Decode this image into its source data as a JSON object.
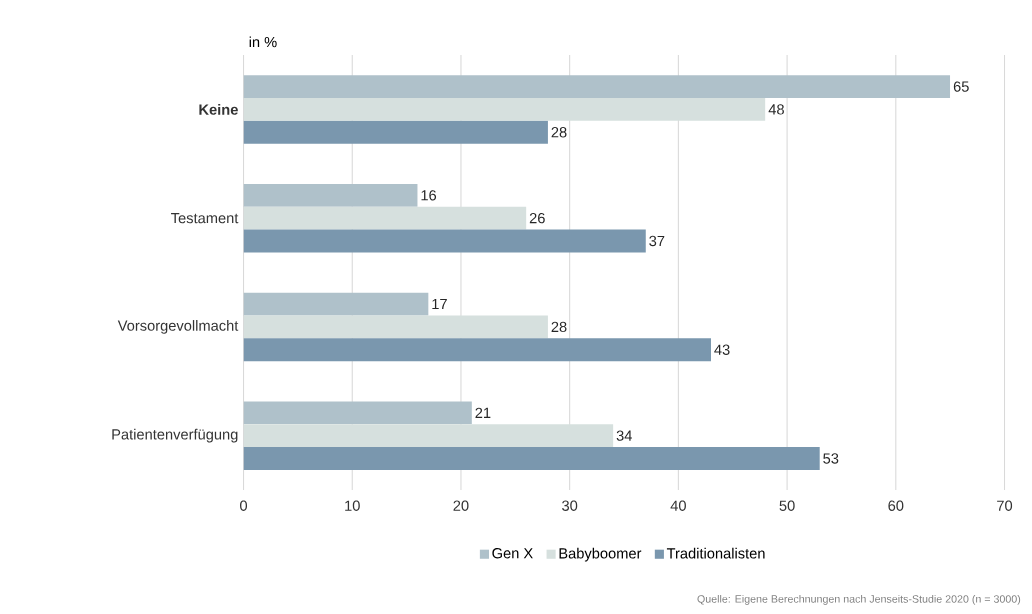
{
  "chart_data": {
    "type": "bar",
    "orientation": "horizontal",
    "xlabel": "in %",
    "categories": [
      "**Keine**",
      "Testament",
      "Vorsorgevollmacht",
      "Patientenverfügung"
    ],
    "series": [
      {
        "name": "Gen X",
        "color": "#afc1ca",
        "values": [
          65,
          16,
          17,
          21
        ]
      },
      {
        "name": "Babyboomer",
        "color": "#d6e0de",
        "values": [
          48,
          26,
          28,
          34
        ]
      },
      {
        "name": "Traditionalisten",
        "color": "#7a97ae",
        "values": [
          28,
          37,
          43,
          53
        ]
      }
    ],
    "xlim": [
      0,
      70
    ],
    "xticks": [
      0,
      10,
      20,
      30,
      40,
      50,
      60,
      70
    ],
    "grid": "x",
    "legend": "bottom",
    "data_labels": true,
    "annotations": [
      "Quelle: Eigene Berechnungen nach Jenseits-Studie 2020 (n = 3000)"
    ]
  }
}
